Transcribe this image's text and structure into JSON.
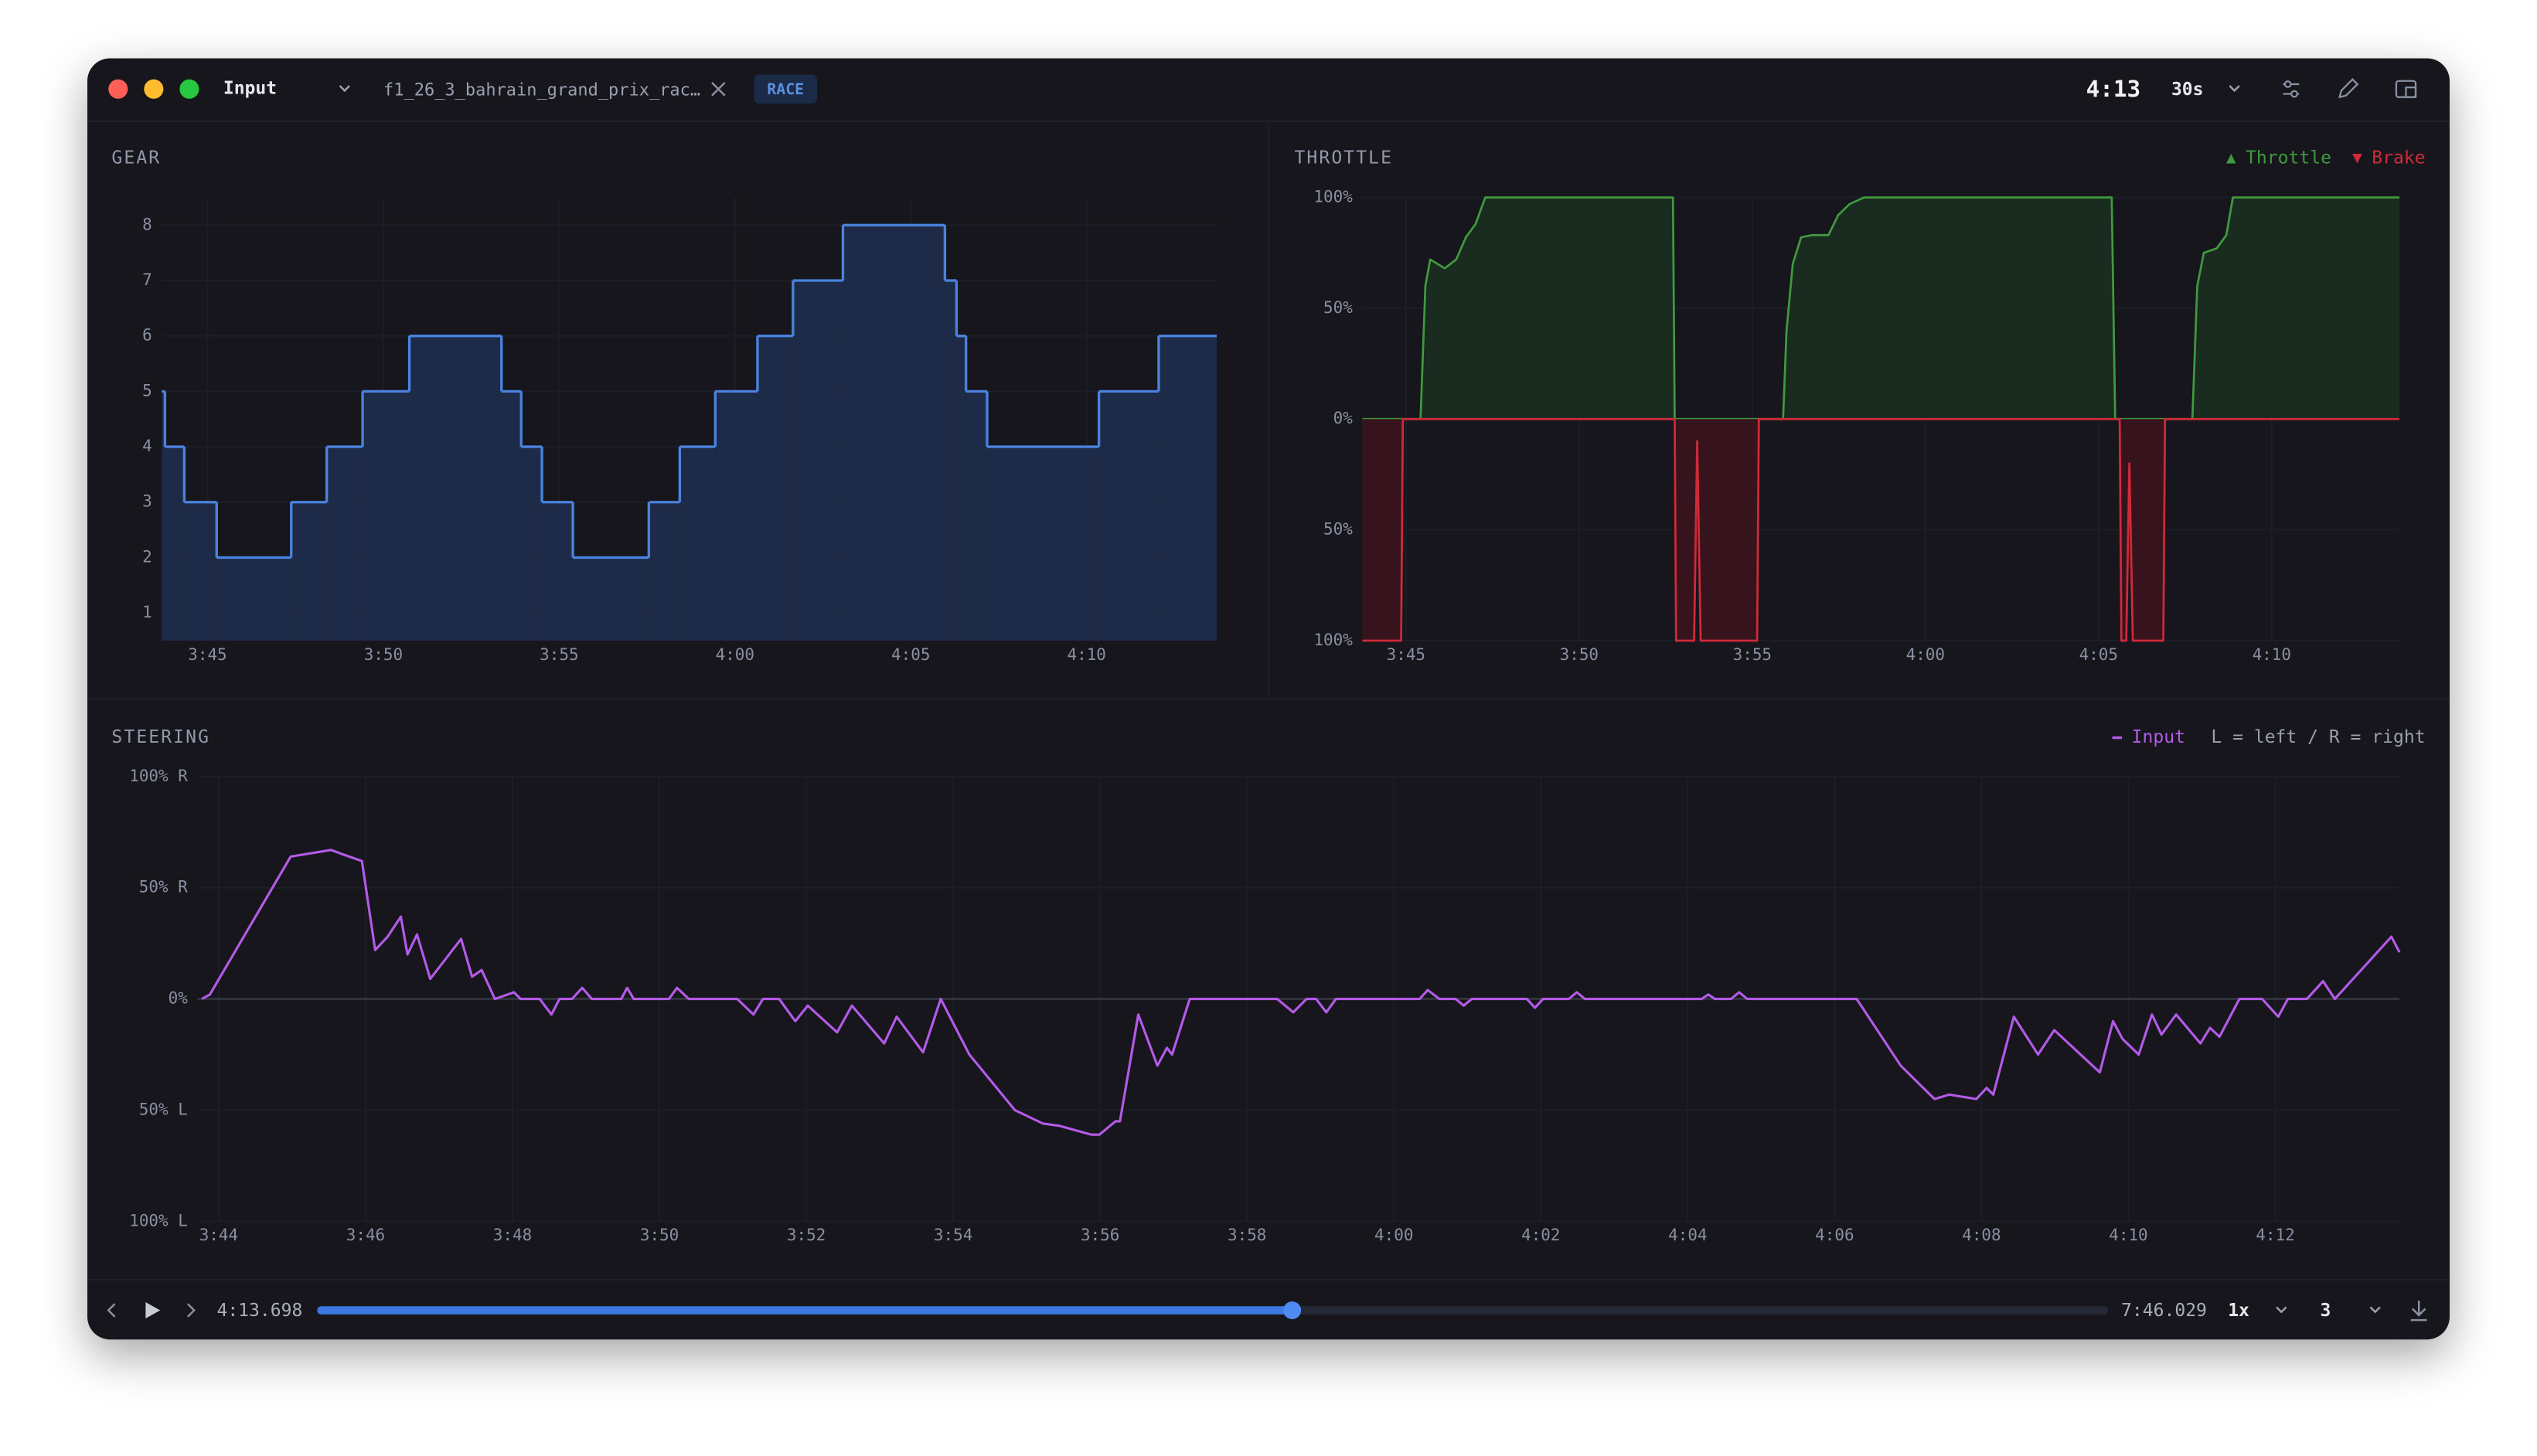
{
  "app": {
    "source": "Input",
    "file": "f1_26_3_bahrain_grand_prix_rac…",
    "session": "RACE",
    "time": "4:13",
    "window": "30s"
  },
  "playback": {
    "position": {
      "value": 253.698,
      "label": "4:13.698"
    },
    "duration": {
      "value": 466.029,
      "label": "7:46.029"
    },
    "speed": "1x",
    "lap": "3"
  },
  "chart_data": [
    {
      "type": "step",
      "title": "GEAR",
      "grid": true,
      "xlim": [
        223.7,
        253.7
      ],
      "xticks": [
        {
          "value": 225,
          "label": "3:45"
        },
        {
          "value": 230,
          "label": "3:50"
        },
        {
          "value": 235,
          "label": "3:55"
        },
        {
          "value": 240,
          "label": "4:00"
        },
        {
          "value": 245,
          "label": "4:05"
        },
        {
          "value": 250,
          "label": "4:10"
        }
      ],
      "ylim": [
        0.5,
        8.5
      ],
      "yticks": [
        1,
        2,
        3,
        4,
        5,
        6,
        7,
        8
      ],
      "series": [
        {
          "name": "Gear",
          "color": "#4a82de",
          "fill": "#1e2b48",
          "x": [
            223.7,
            223.79,
            224.34,
            225.26,
            227.38,
            228.39,
            229.41,
            230.74,
            233.36,
            233.92,
            234.51,
            235.39,
            237.55,
            238.43,
            239.44,
            240.64,
            241.65,
            243.07,
            245.97,
            246.3,
            246.57,
            247.17,
            250.35,
            252.05,
            253.7
          ],
          "values": [
            5,
            4,
            3,
            2,
            3,
            4,
            5,
            6,
            5,
            4,
            3,
            2,
            3,
            4,
            5,
            6,
            7,
            8,
            7,
            6,
            5,
            4,
            5,
            6,
            6
          ]
        }
      ]
    },
    {
      "type": "area",
      "title": "THROTTLE",
      "grid": true,
      "legend": "top-right",
      "xlim": [
        223.74,
        253.69
      ],
      "xticks": [
        {
          "value": 225,
          "label": "3:45"
        },
        {
          "value": 230,
          "label": "3:50"
        },
        {
          "value": 235,
          "label": "3:55"
        },
        {
          "value": 240,
          "label": "4:00"
        },
        {
          "value": 245,
          "label": "4:05"
        },
        {
          "value": 250,
          "label": "4:10"
        }
      ],
      "ylim": [
        -100,
        100
      ],
      "yticks": [
        {
          "value": 0,
          "label": "0%"
        },
        {
          "value": 50,
          "label": "50%"
        },
        {
          "value": 100,
          "label": "100%"
        }
      ],
      "y2lim": [
        100,
        -100
      ],
      "y2ticks": [
        {
          "value": 50,
          "label": "50%"
        },
        {
          "value": 100,
          "label": "100%"
        }
      ],
      "series": [
        {
          "name": "Throttle",
          "color": "#3f9a3f",
          "fill": "#1a2b1f",
          "marker": "up",
          "x": [
            223.74,
            225.42,
            225.56,
            225.7,
            226.12,
            226.45,
            226.73,
            227.01,
            227.29,
            232.71,
            232.76,
            235.89,
            235.99,
            236.17,
            236.41,
            236.73,
            237.2,
            237.48,
            237.81,
            238.23,
            245.38,
            245.48,
            247.71,
            247.85,
            248.04,
            248.41,
            248.69,
            248.88,
            253.69
          ],
          "values": [
            0,
            0,
            60,
            72,
            68,
            72,
            82,
            88,
            100,
            100,
            0,
            0,
            40,
            70,
            82,
            83,
            83,
            92,
            97,
            100,
            100,
            0,
            0,
            60,
            75,
            77,
            83,
            100,
            100
          ]
        },
        {
          "name": "Brake",
          "color": "#d02a3a",
          "fill": "#37141d",
          "marker": "down",
          "axis": "y2",
          "x": [
            223.74,
            224.86,
            224.91,
            232.76,
            232.8,
            233.32,
            233.41,
            233.51,
            235.14,
            235.19,
            245.61,
            245.66,
            245.8,
            245.89,
            245.99,
            246.87,
            246.92,
            253.69
          ],
          "values": [
            100,
            100,
            0,
            0,
            100,
            100,
            10,
            100,
            100,
            0,
            0,
            100,
            100,
            20,
            100,
            100,
            0,
            0
          ]
        }
      ]
    },
    {
      "type": "line",
      "title": "STEERING",
      "grid": true,
      "legend": "top-right",
      "legend_note": "L = left / R = right",
      "xlim": [
        223.71,
        253.69
      ],
      "xticks": [
        {
          "value": 224,
          "label": "3:44"
        },
        {
          "value": 226,
          "label": "3:46"
        },
        {
          "value": 228,
          "label": "3:48"
        },
        {
          "value": 230,
          "label": "3:50"
        },
        {
          "value": 232,
          "label": "3:52"
        },
        {
          "value": 234,
          "label": "3:54"
        },
        {
          "value": 236,
          "label": "3:56"
        },
        {
          "value": 238,
          "label": "3:58"
        },
        {
          "value": 240,
          "label": "4:00"
        },
        {
          "value": 242,
          "label": "4:02"
        },
        {
          "value": 244,
          "label": "4:04"
        },
        {
          "value": 246,
          "label": "4:06"
        },
        {
          "value": 248,
          "label": "4:08"
        },
        {
          "value": 250,
          "label": "4:10"
        },
        {
          "value": 252,
          "label": "4:12"
        }
      ],
      "ylim": [
        -100,
        100
      ],
      "yticks": [
        {
          "value": -100,
          "label": "100% L"
        },
        {
          "value": -50,
          "label": "50% L"
        },
        {
          "value": 0,
          "label": "0%"
        },
        {
          "value": 50,
          "label": "50% R"
        },
        {
          "value": 100,
          "label": "100% R"
        }
      ],
      "series": [
        {
          "name": "Input",
          "color": "#b45ae8",
          "x": [
            223.77,
            223.88,
            224.98,
            225.53,
            225.69,
            225.95,
            226.13,
            226.3,
            226.48,
            226.57,
            226.7,
            226.88,
            227.3,
            227.45,
            227.58,
            227.76,
            228.02,
            228.11,
            228.37,
            228.53,
            228.64,
            228.81,
            228.95,
            229.08,
            229.48,
            229.56,
            229.65,
            230.13,
            230.24,
            230.4,
            231.06,
            231.28,
            231.41,
            231.63,
            231.85,
            232.02,
            232.42,
            232.62,
            233.06,
            233.23,
            233.59,
            233.83,
            234.22,
            234.84,
            235.22,
            235.44,
            235.88,
            235.99,
            236.21,
            236.27,
            236.52,
            236.78,
            236.91,
            236.98,
            237.22,
            238.41,
            238.63,
            238.81,
            238.94,
            239.08,
            239.21,
            240.35,
            240.46,
            240.62,
            240.84,
            240.95,
            241.06,
            241.81,
            241.92,
            242.03,
            242.38,
            242.49,
            242.6,
            244.19,
            244.28,
            244.37,
            244.59,
            244.7,
            244.81,
            246.3,
            246.9,
            247.36,
            247.56,
            247.93,
            248.07,
            248.16,
            248.44,
            248.77,
            248.99,
            249.61,
            249.79,
            249.92,
            250.14,
            250.32,
            250.45,
            250.65,
            250.98,
            251.11,
            251.24,
            251.51,
            251.82,
            252.04,
            252.17,
            252.43,
            252.65,
            252.81,
            253.58,
            253.69
          ],
          "values": [
            0,
            2,
            64,
            67,
            65,
            62,
            22,
            28,
            37,
            20,
            29,
            9,
            27,
            10,
            13,
            0,
            3,
            0,
            0,
            -7,
            0,
            0,
            5,
            0,
            0,
            5,
            0,
            0,
            5,
            0,
            0,
            -7,
            0,
            0,
            -10,
            -3,
            -15,
            -3,
            -20,
            -8,
            -24,
            0,
            -25,
            -50,
            -56,
            -57,
            -61,
            -61,
            -55,
            -55,
            -7,
            -30,
            -22,
            -25,
            0,
            0,
            -6,
            0,
            0,
            -6,
            0,
            0,
            4,
            0,
            0,
            -3,
            0,
            0,
            -4,
            0,
            0,
            3,
            0,
            0,
            2,
            0,
            0,
            3,
            0,
            0,
            -30,
            -45,
            -43,
            -45,
            -40,
            -43,
            -8,
            -25,
            -14,
            -33,
            -10,
            -18,
            -25,
            -7,
            -16,
            -7,
            -20,
            -13,
            -17,
            0,
            0,
            -8,
            0,
            0,
            8,
            0,
            28,
            21
          ]
        }
      ]
    }
  ]
}
